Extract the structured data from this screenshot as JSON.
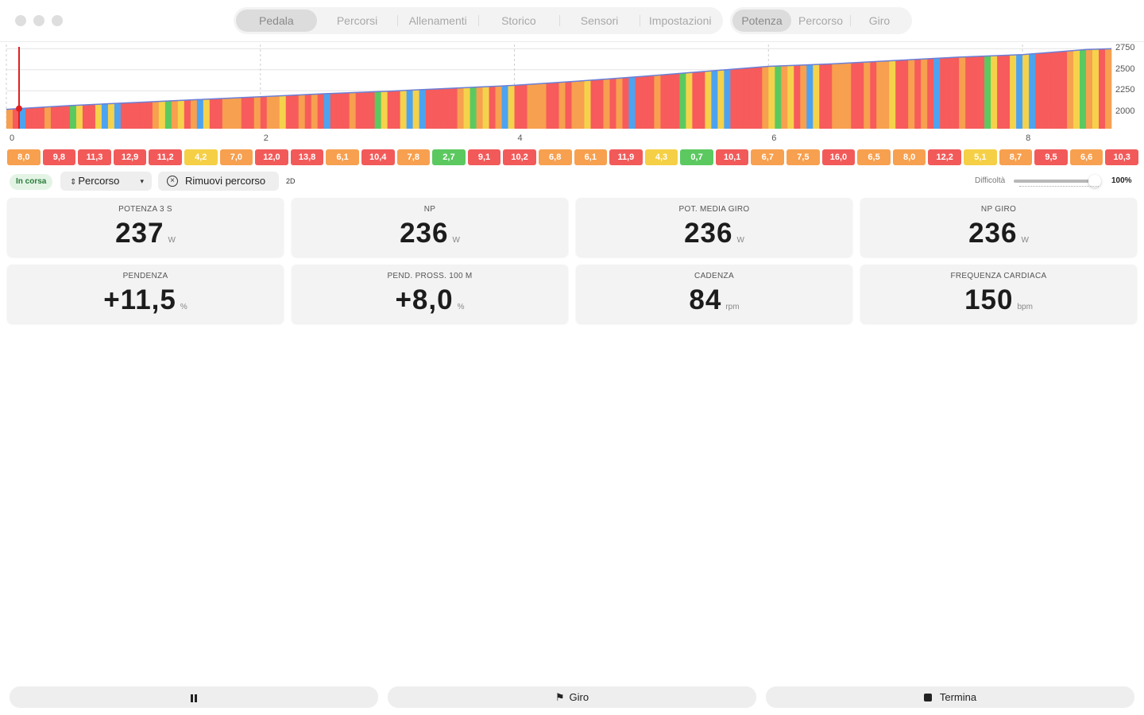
{
  "window": {
    "controls": [
      "close",
      "minimize",
      "zoom"
    ]
  },
  "nav": {
    "tabs": [
      {
        "label": "Pedala",
        "active": true
      },
      {
        "label": "Percorsi",
        "active": false
      },
      {
        "label": "Allenamenti",
        "active": false
      },
      {
        "label": "Storico",
        "active": false
      },
      {
        "label": "Sensori",
        "active": false
      },
      {
        "label": "Impostazioni",
        "active": false
      }
    ],
    "views": [
      {
        "label": "Potenza",
        "active": true
      },
      {
        "label": "Percorso",
        "active": false
      },
      {
        "label": "Giro",
        "active": false
      }
    ]
  },
  "chart_data": {
    "type": "area",
    "title": "",
    "xlabel": "",
    "ylabel": "",
    "x_ticks": [
      "0",
      "2",
      "4",
      "6",
      "8"
    ],
    "y_ticks": [
      "2750",
      "2500",
      "2250",
      "2000"
    ],
    "xlim": [
      0,
      8.7
    ],
    "ylim": [
      1800,
      2800
    ],
    "current_position_km": 0.1,
    "gradient_colors": {
      "easy": "#5bc95f",
      "moderate": "#f5d24b",
      "hard": "#f7a04f",
      "steep": "#f75b5b",
      "descent": "#4da3f0"
    },
    "elevation_profile": {
      "x": [
        0,
        0.5,
        1,
        1.5,
        2,
        2.5,
        3,
        3.5,
        4,
        4.5,
        5,
        5.5,
        6,
        6.5,
        7,
        7.5,
        8,
        8.5,
        8.7
      ],
      "y": [
        2030,
        2075,
        2110,
        2145,
        2180,
        2215,
        2245,
        2280,
        2315,
        2365,
        2420,
        2480,
        2540,
        2570,
        2610,
        2650,
        2680,
        2740,
        2750
      ]
    }
  },
  "segments": [
    {
      "label": "8,0",
      "color": "#f7a04f"
    },
    {
      "label": "9,8",
      "color": "#f25a5a"
    },
    {
      "label": "11,3",
      "color": "#f25a5a"
    },
    {
      "label": "12,9",
      "color": "#f25a5a"
    },
    {
      "label": "11,2",
      "color": "#f25a5a"
    },
    {
      "label": "4,2",
      "color": "#f5cf45"
    },
    {
      "label": "7,0",
      "color": "#f7a04f"
    },
    {
      "label": "12,0",
      "color": "#f25a5a"
    },
    {
      "label": "13,8",
      "color": "#f25a5a"
    },
    {
      "label": "6,1",
      "color": "#f7a04f"
    },
    {
      "label": "10,4",
      "color": "#f25a5a"
    },
    {
      "label": "7,8",
      "color": "#f7a04f"
    },
    {
      "label": "2,7",
      "color": "#5bc95f"
    },
    {
      "label": "9,1",
      "color": "#f25a5a"
    },
    {
      "label": "10,2",
      "color": "#f25a5a"
    },
    {
      "label": "6,8",
      "color": "#f7a04f"
    },
    {
      "label": "6,1",
      "color": "#f7a04f"
    },
    {
      "label": "11,9",
      "color": "#f25a5a"
    },
    {
      "label": "4,3",
      "color": "#f5cf45"
    },
    {
      "label": "0,7",
      "color": "#5bc95f"
    },
    {
      "label": "10,1",
      "color": "#f25a5a"
    },
    {
      "label": "6,7",
      "color": "#f7a04f"
    },
    {
      "label": "7,5",
      "color": "#f7a04f"
    },
    {
      "label": "16,0",
      "color": "#f25a5a"
    },
    {
      "label": "6,5",
      "color": "#f7a04f"
    },
    {
      "label": "8,0",
      "color": "#f7a04f"
    },
    {
      "label": "12,2",
      "color": "#f25a5a"
    },
    {
      "label": "5,1",
      "color": "#f5cf45"
    },
    {
      "label": "8,7",
      "color": "#f7a04f"
    },
    {
      "label": "9,5",
      "color": "#f25a5a"
    },
    {
      "label": "6,6",
      "color": "#f7a04f"
    },
    {
      "label": "10,3",
      "color": "#f25a5a"
    }
  ],
  "controls": {
    "status": "In corsa",
    "route_select": "Percorso",
    "remove_route": "Rimuovi percorso",
    "mode": "2D",
    "difficulty_label": "Difficoltà",
    "difficulty_value": "100%",
    "difficulty_level": 1.0
  },
  "metrics": [
    {
      "label": "POTENZA 3 S",
      "value": "237",
      "unit": "W"
    },
    {
      "label": "NP",
      "value": "236",
      "unit": "W"
    },
    {
      "label": "POT. MEDIA GIRO",
      "value": "236",
      "unit": "W"
    },
    {
      "label": "NP GIRO",
      "value": "236",
      "unit": "W"
    },
    {
      "label": "PENDENZA",
      "value": "+11,5",
      "unit": "%"
    },
    {
      "label": "PEND. PROSS. 100 M",
      "value": "+8,0",
      "unit": "%"
    },
    {
      "label": "CADENZA",
      "value": "84",
      "unit": "rpm"
    },
    {
      "label": "FREQUENZA CARDIACA",
      "value": "150",
      "unit": "bpm"
    }
  ],
  "bottom": {
    "pause_icon": "pause-icon",
    "lap_label": "Giro",
    "lap_icon": "flag-icon",
    "end_label": "Termina",
    "end_icon": "stop-icon"
  }
}
